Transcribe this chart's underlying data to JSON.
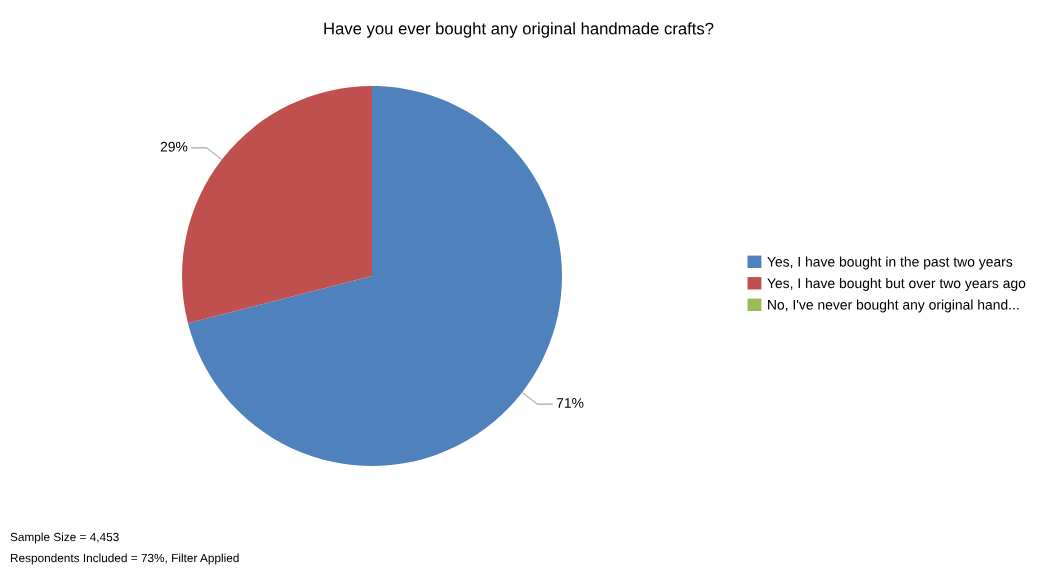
{
  "chart_data": {
    "type": "pie",
    "title": "Have you ever bought any original handmade crafts?",
    "categories": [
      "Yes, I have bought in the past two years",
      "Yes, I have bought but over two years ago",
      "No, I've never bought any original hand..."
    ],
    "values": [
      71,
      29,
      0
    ],
    "colors": [
      "#4f81bd",
      "#c0504d",
      "#9bbb59"
    ],
    "value_labels": [
      "71%",
      "29%",
      null
    ],
    "legend": "right",
    "annotations": [
      "Sample Size = 4,453",
      "Respondents Included = 73%, Filter Applied"
    ]
  }
}
